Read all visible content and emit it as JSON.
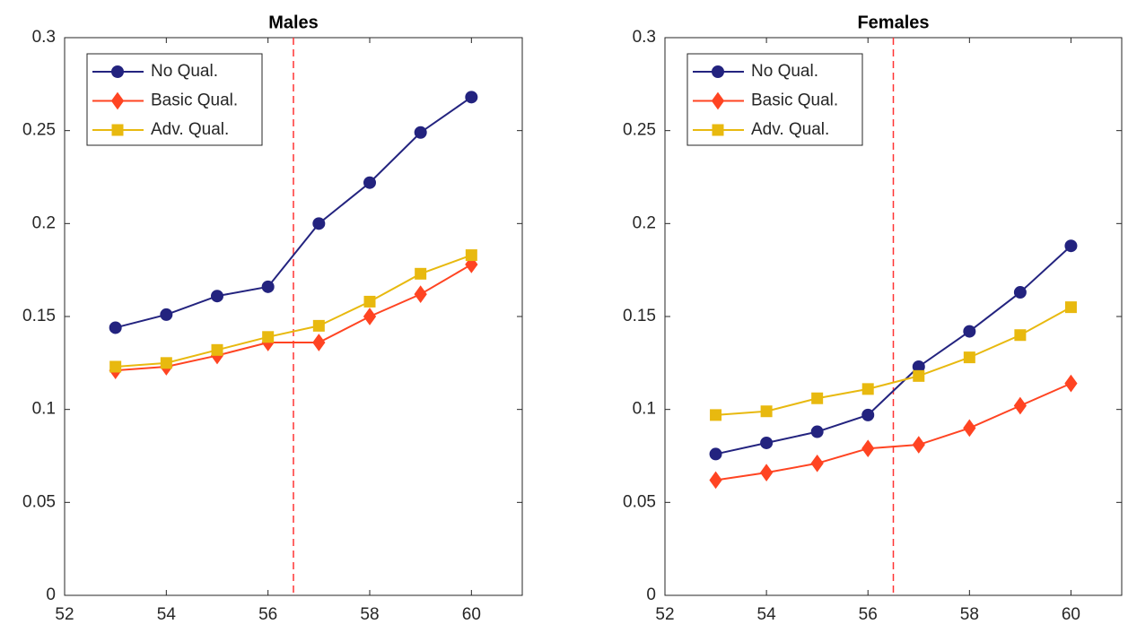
{
  "chart_data": [
    {
      "type": "line",
      "title": "Males",
      "x": [
        53,
        54,
        55,
        56,
        57,
        58,
        59,
        60
      ],
      "series": [
        {
          "name": "No Qual.",
          "color": "#23237f",
          "marker": "circle",
          "values": [
            0.144,
            0.151,
            0.161,
            0.166,
            0.2,
            0.222,
            0.249,
            0.268
          ]
        },
        {
          "name": "Basic Qual.",
          "color": "#ff4422",
          "marker": "diamond",
          "values": [
            0.121,
            0.123,
            0.129,
            0.136,
            0.136,
            0.15,
            0.162,
            0.178
          ]
        },
        {
          "name": "Adv. Qual.",
          "color": "#e8b90f",
          "marker": "square",
          "values": [
            0.123,
            0.125,
            0.132,
            0.139,
            0.145,
            0.158,
            0.173,
            0.183
          ]
        }
      ],
      "reference_line": {
        "x": 56.5,
        "color": "#ff3333"
      },
      "xlim": [
        52,
        61
      ],
      "xticks": [
        52,
        54,
        56,
        58,
        60
      ],
      "ylim": [
        0,
        0.3
      ],
      "yticks": [
        0,
        0.05,
        0.1,
        0.15,
        0.2,
        0.25,
        0.3
      ],
      "legend": "upper left",
      "grid": false
    },
    {
      "type": "line",
      "title": "Females",
      "x": [
        53,
        54,
        55,
        56,
        57,
        58,
        59,
        60
      ],
      "series": [
        {
          "name": "No Qual.",
          "color": "#23237f",
          "marker": "circle",
          "values": [
            0.076,
            0.082,
            0.088,
            0.097,
            0.123,
            0.142,
            0.163,
            0.188
          ]
        },
        {
          "name": "Basic Qual.",
          "color": "#ff4422",
          "marker": "diamond",
          "values": [
            0.062,
            0.066,
            0.071,
            0.079,
            0.081,
            0.09,
            0.102,
            0.114
          ]
        },
        {
          "name": "Adv. Qual.",
          "color": "#e8b90f",
          "marker": "square",
          "values": [
            0.097,
            0.099,
            0.106,
            0.111,
            0.118,
            0.128,
            0.14,
            0.155
          ]
        }
      ],
      "reference_line": {
        "x": 56.5,
        "color": "#ff3333"
      },
      "xlim": [
        52,
        61
      ],
      "xticks": [
        52,
        54,
        56,
        58,
        60
      ],
      "ylim": [
        0,
        0.3
      ],
      "yticks": [
        0,
        0.05,
        0.1,
        0.15,
        0.2,
        0.25,
        0.3
      ],
      "legend": "upper left",
      "grid": false
    }
  ]
}
